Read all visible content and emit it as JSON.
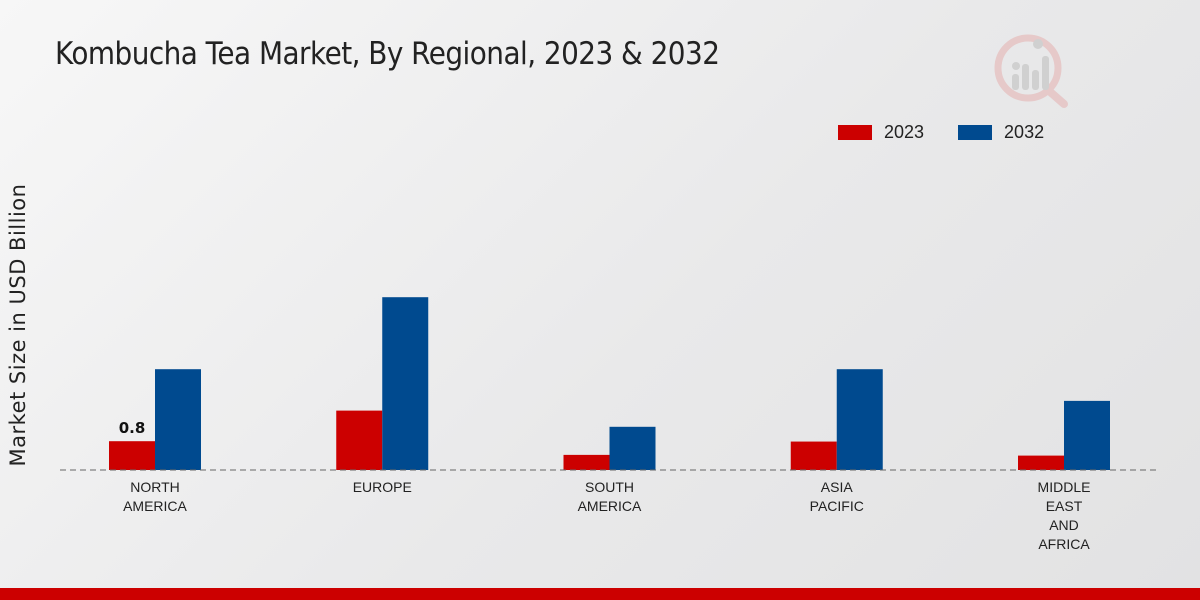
{
  "title": "Kombucha Tea Market, By Regional, 2023 & 2032",
  "colors": {
    "s2023": "#cc0000",
    "s2032": "#004a8f",
    "accent_bar": "#cc0000"
  },
  "chart_data": {
    "type": "bar",
    "title": "Kombucha Tea Market, By Regional, 2023 & 2032",
    "ylabel": "Market Size in USD Billion",
    "xlabel": "",
    "categories": [
      [
        "NORTH",
        "AMERICA"
      ],
      [
        "EUROPE"
      ],
      [
        "SOUTH",
        "AMERICA"
      ],
      [
        "ASIA",
        "PACIFIC"
      ],
      [
        "MIDDLE",
        "EAST",
        "AND",
        "AFRICA"
      ]
    ],
    "series": [
      {
        "name": "2023",
        "color": "#cc0000",
        "values": [
          0.8,
          1.65,
          0.42,
          0.79,
          0.4
        ]
      },
      {
        "name": "2032",
        "color": "#004a8f",
        "values": [
          2.8,
          4.8,
          1.2,
          2.8,
          1.92
        ]
      }
    ],
    "data_labels": [
      {
        "series": 0,
        "index": 0,
        "text": "0.8"
      }
    ],
    "ylim": [
      0,
      6
    ],
    "grid": false,
    "legend_position": "top-right"
  }
}
